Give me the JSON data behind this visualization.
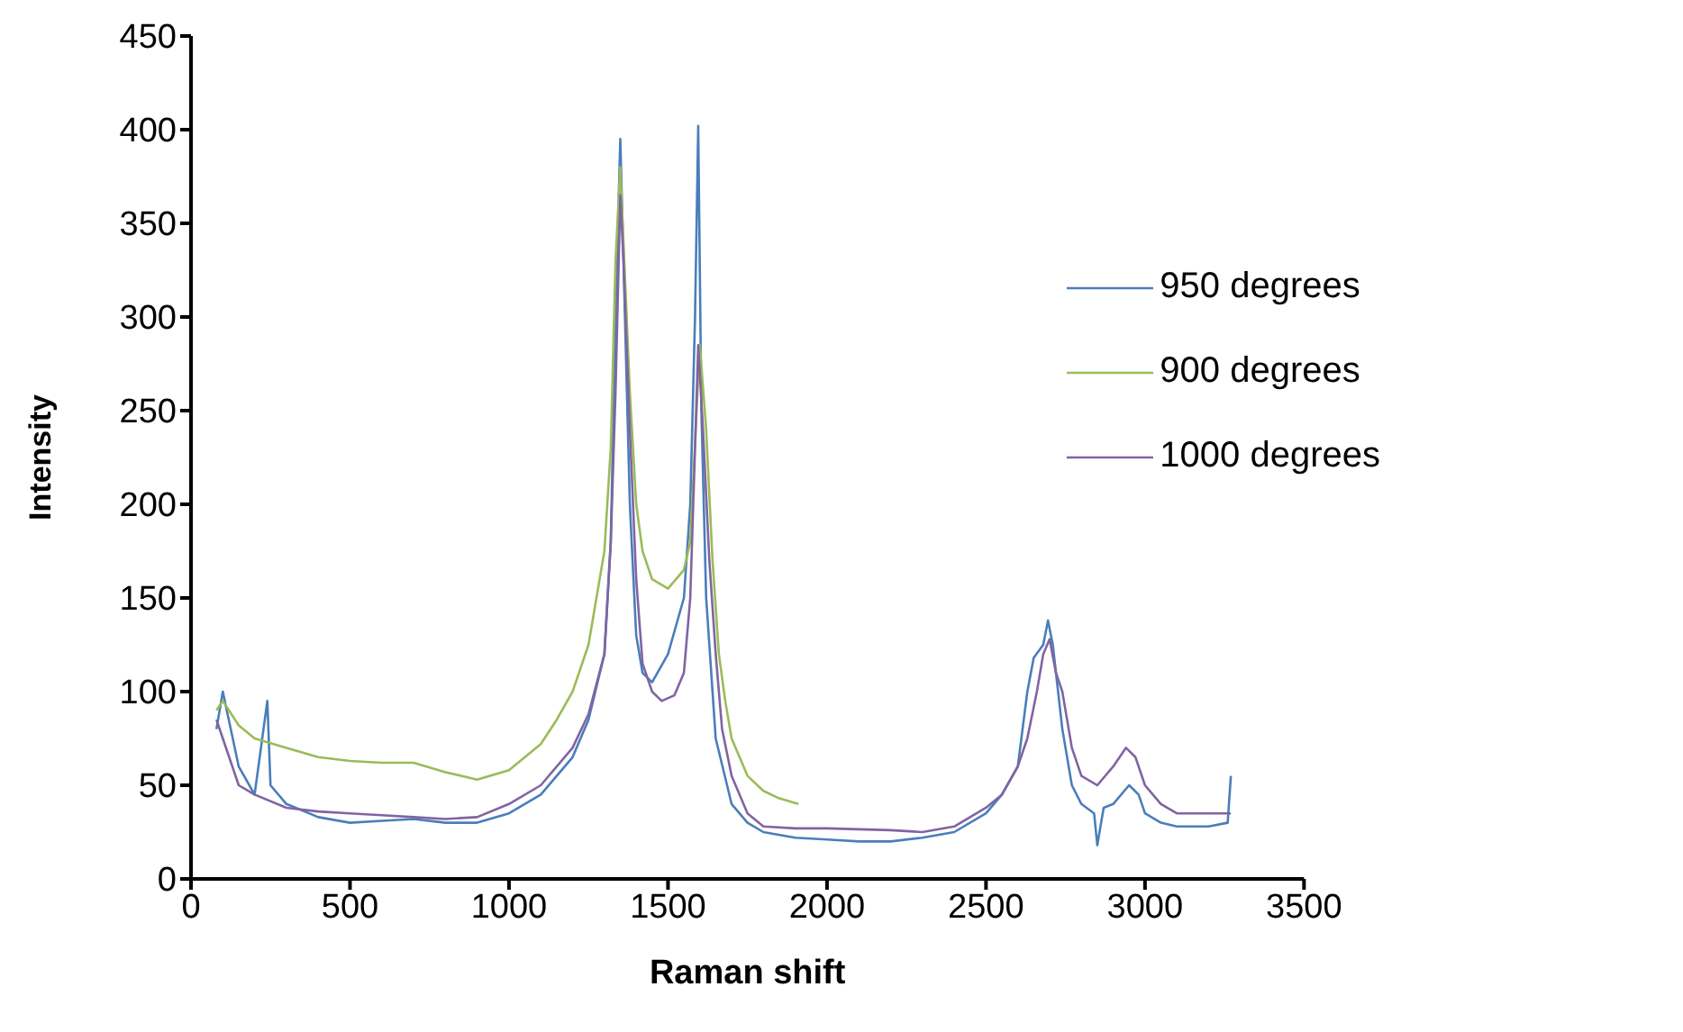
{
  "chart_data": {
    "type": "line",
    "xlabel": "Raman shift",
    "ylabel": "Intensity",
    "xlim": [
      0,
      3500
    ],
    "xticks": [
      0,
      500,
      1000,
      1500,
      2000,
      2500,
      3000,
      3500
    ],
    "ylim": [
      0,
      450
    ],
    "yticks": [
      0,
      50,
      100,
      150,
      200,
      250,
      300,
      350,
      400,
      450
    ],
    "grid": false,
    "legend": "right",
    "marker": "none",
    "series": [
      {
        "name": "950 degrees",
        "color": "#4a7ebb",
        "x": [
          80,
          100,
          150,
          200,
          240,
          250,
          300,
          400,
          500,
          600,
          700,
          800,
          900,
          1000,
          1100,
          1200,
          1250,
          1300,
          1320,
          1335,
          1350,
          1360,
          1380,
          1400,
          1420,
          1450,
          1500,
          1550,
          1570,
          1585,
          1595,
          1605,
          1620,
          1650,
          1700,
          1750,
          1800,
          1900,
          2000,
          2100,
          2200,
          2300,
          2400,
          2500,
          2550,
          2600,
          2630,
          2650,
          2680,
          2695,
          2710,
          2740,
          2770,
          2800,
          2840,
          2850,
          2870,
          2900,
          2950,
          2980,
          3000,
          3050,
          3100,
          3200,
          3260,
          3270
        ],
        "values": [
          80,
          100,
          60,
          45,
          95,
          50,
          40,
          33,
          30,
          31,
          32,
          30,
          30,
          35,
          45,
          65,
          85,
          120,
          180,
          300,
          395,
          330,
          200,
          130,
          110,
          105,
          120,
          150,
          200,
          300,
          402,
          250,
          150,
          75,
          40,
          30,
          25,
          22,
          21,
          20,
          20,
          22,
          25,
          35,
          45,
          60,
          100,
          118,
          125,
          138,
          125,
          80,
          50,
          40,
          35,
          18,
          38,
          40,
          50,
          45,
          35,
          30,
          28,
          28,
          30,
          55
        ]
      },
      {
        "name": "900 degrees",
        "color": "#9bbb59",
        "x": [
          80,
          100,
          150,
          200,
          300,
          400,
          500,
          600,
          700,
          800,
          900,
          1000,
          1100,
          1150,
          1200,
          1250,
          1300,
          1320,
          1335,
          1350,
          1360,
          1380,
          1400,
          1420,
          1450,
          1500,
          1550,
          1570,
          1590,
          1600,
          1620,
          1640,
          1660,
          1680,
          1700,
          1750,
          1800,
          1850,
          1910
        ],
        "values": [
          90,
          95,
          82,
          75,
          70,
          65,
          63,
          62,
          62,
          57,
          53,
          58,
          72,
          85,
          100,
          125,
          175,
          230,
          330,
          380,
          340,
          260,
          200,
          175,
          160,
          155,
          165,
          180,
          250,
          285,
          240,
          170,
          120,
          95,
          75,
          55,
          47,
          43,
          40
        ]
      },
      {
        "name": "1000 degrees",
        "color": "#8064a2",
        "x": [
          80,
          100,
          150,
          200,
          300,
          400,
          500,
          600,
          700,
          800,
          900,
          1000,
          1100,
          1200,
          1250,
          1300,
          1320,
          1335,
          1350,
          1360,
          1380,
          1400,
          1420,
          1450,
          1480,
          1520,
          1550,
          1570,
          1585,
          1595,
          1610,
          1630,
          1650,
          1670,
          1700,
          1750,
          1800,
          1900,
          2000,
          2200,
          2300,
          2400,
          2500,
          2550,
          2600,
          2630,
          2660,
          2680,
          2700,
          2720,
          2740,
          2770,
          2800,
          2850,
          2900,
          2940,
          2970,
          3000,
          3050,
          3100,
          3200,
          3270
        ],
        "values": [
          85,
          75,
          50,
          45,
          38,
          36,
          35,
          34,
          33,
          32,
          33,
          40,
          50,
          70,
          88,
          120,
          180,
          260,
          365,
          330,
          240,
          160,
          115,
          100,
          95,
          98,
          110,
          150,
          230,
          285,
          240,
          170,
          120,
          80,
          55,
          35,
          28,
          27,
          27,
          26,
          25,
          28,
          38,
          45,
          60,
          75,
          100,
          120,
          128,
          110,
          100,
          70,
          55,
          50,
          60,
          70,
          65,
          50,
          40,
          35,
          35,
          35
        ]
      }
    ]
  }
}
